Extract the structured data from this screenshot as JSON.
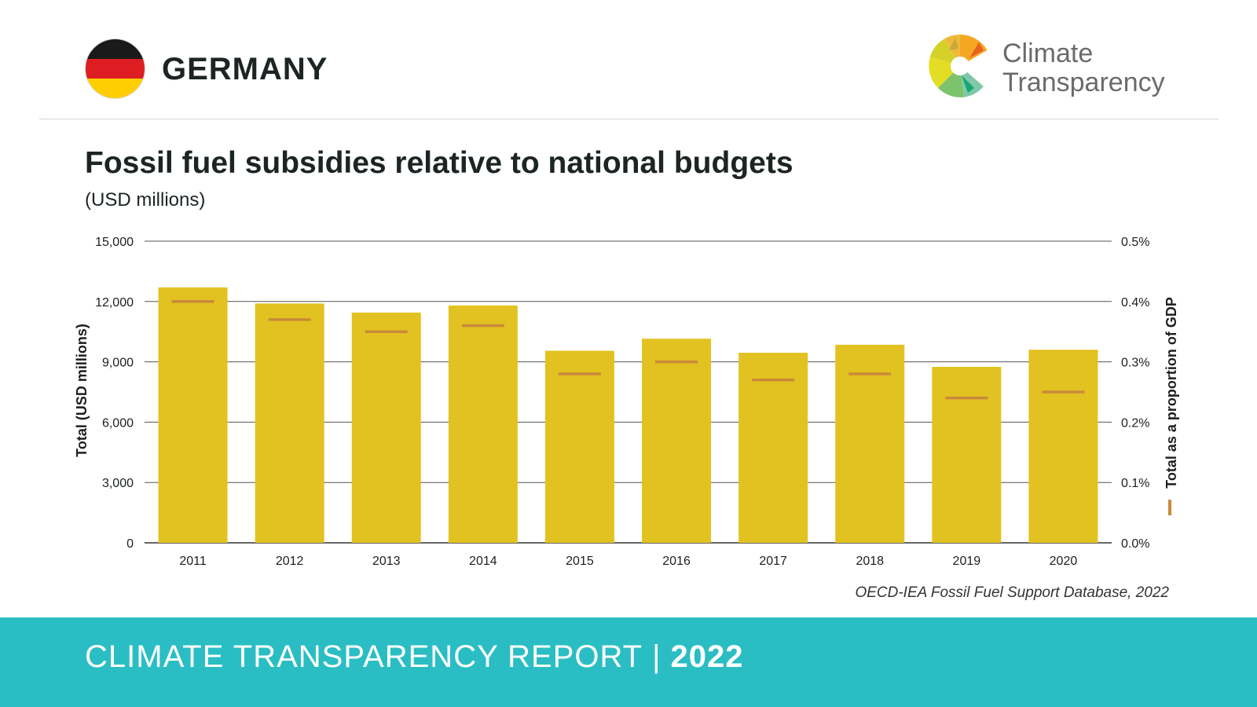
{
  "header": {
    "country": "GERMANY",
    "flag_colors": [
      "#1a1a1a",
      "#dd1d21",
      "#ffce00"
    ],
    "logo_text_line1": "Climate",
    "logo_text_line2": "Transparency",
    "logo_icon": "climate-transparency-logo-icon"
  },
  "chart_data": {
    "type": "bar",
    "title": "Fossil fuel subsidies relative to national budgets",
    "subtitle": "(USD millions)",
    "categories": [
      "2011",
      "2012",
      "2013",
      "2014",
      "2015",
      "2016",
      "2017",
      "2018",
      "2019",
      "2020"
    ],
    "series": [
      {
        "name": "Total (USD millions)",
        "axis": "left",
        "values": [
          12700,
          11900,
          11450,
          11800,
          9550,
          10150,
          9450,
          9850,
          8750,
          9600
        ],
        "color": "#e2c220"
      },
      {
        "name": "Total as a proportion of GDP",
        "axis": "right",
        "mark": "dash",
        "values": [
          0.4,
          0.37,
          0.35,
          0.36,
          0.28,
          0.3,
          0.27,
          0.28,
          0.24,
          0.25
        ],
        "color": "#c98a3a"
      }
    ],
    "ylabel": "Total (USD millions)",
    "y2label": "Total as a proportion of GDP",
    "ylim": [
      0,
      15000
    ],
    "y2lim": [
      0,
      0.5
    ],
    "yticks": [
      "0",
      "3,000",
      "6,000",
      "9,000",
      "12,000",
      "15,000"
    ],
    "y2ticks": [
      "0.0%",
      "0.1%",
      "0.2%",
      "0.3%",
      "0.4%",
      "0.5%"
    ],
    "grid": true
  },
  "source": "OECD-IEA Fossil Fuel Support Database, 2022",
  "footer": {
    "label": "CLIMATE TRANSPARENCY REPORT",
    "separator": "|",
    "year": "2022",
    "background": "#2abec4"
  }
}
